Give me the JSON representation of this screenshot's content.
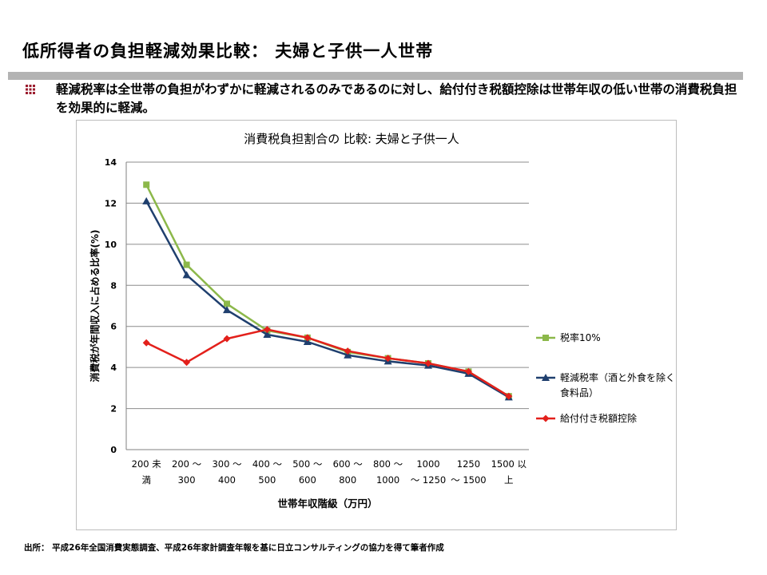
{
  "slide": {
    "title": "低所得者の負担軽減効果比較：  夫婦と子供一人世帯",
    "bullet": "軽減税率は全世帯の負担がわずかに軽減されるのみであるのに対し、給付付き税額控除は世帯年収の低い世帯の消費税負担を効果的に軽減。",
    "source": "出所：  平成26年全国消費実態調査、平成26年家計調査年報を基に日立コンサルティングの協力を得て筆者作成"
  },
  "colors": {
    "title_rule": "#b3b3b3",
    "bullet_icon": "#9b1c2e",
    "grid": "#8c8c8c",
    "axis": "#808080",
    "frame": "#bdbdbd"
  },
  "chart_data": {
    "type": "line",
    "title": "消費税負担割合の 比較:   夫婦と子供一人",
    "xlabel": "世帯年収階級（万円）",
    "ylabel": "消費税が年間収入に占める比率(%)",
    "ylim": [
      0,
      14
    ],
    "yticks": [
      0,
      2,
      4,
      6,
      8,
      10,
      12,
      14
    ],
    "grid": true,
    "legend_position": "right",
    "categories": [
      [
        "200 未",
        "満"
      ],
      [
        "200 〜",
        "300"
      ],
      [
        "300 〜",
        "400"
      ],
      [
        "400 〜",
        "500"
      ],
      [
        "500 〜",
        "600"
      ],
      [
        "600 〜",
        "800"
      ],
      [
        "800 〜",
        "1000"
      ],
      [
        "1000",
        "〜 1250"
      ],
      [
        "1250",
        "〜 1500"
      ],
      [
        "1500 以",
        "上"
      ]
    ],
    "series": [
      {
        "name": "税率10%",
        "color": "#8cb84a",
        "marker": "square",
        "values": [
          12.9,
          9.0,
          7.1,
          5.8,
          5.45,
          4.75,
          4.45,
          4.2,
          3.8,
          2.6
        ]
      },
      {
        "name": "軽減税率（酒と外食を除く食料品）",
        "legend_lines": [
          "軽減税率（酒と外食を除く",
          "食料品）"
        ],
        "color": "#1f3f6e",
        "marker": "triangle",
        "values": [
          12.1,
          8.5,
          6.8,
          5.6,
          5.25,
          4.6,
          4.3,
          4.1,
          3.7,
          2.55
        ]
      },
      {
        "name": "給付付き税額控除",
        "color": "#e3201b",
        "marker": "diamond",
        "values": [
          5.2,
          4.25,
          5.4,
          5.85,
          5.45,
          4.8,
          4.45,
          4.2,
          3.8,
          2.6
        ]
      }
    ]
  }
}
